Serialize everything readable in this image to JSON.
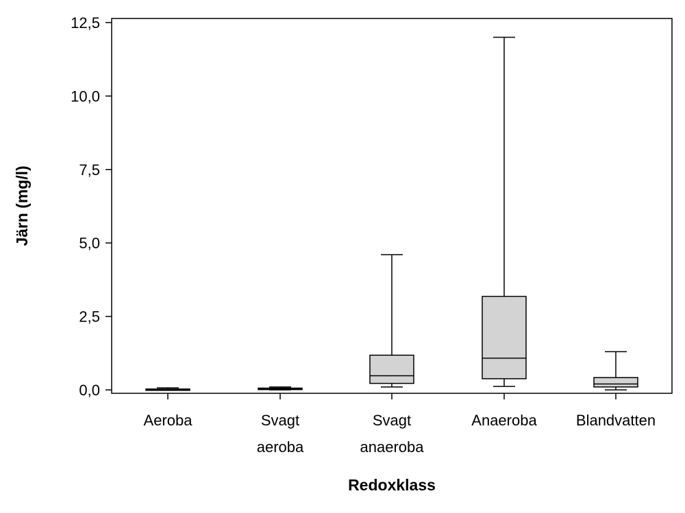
{
  "chart_data": {
    "type": "box",
    "xlabel": "Redoxklass",
    "ylabel": "Järn (mg/l)",
    "ylim": [
      -0.1,
      12.5
    ],
    "yticks": [
      {
        "value": 0.0,
        "label": "0,0"
      },
      {
        "value": 2.5,
        "label": "2,5"
      },
      {
        "value": 5.0,
        "label": "5,0"
      },
      {
        "value": 7.5,
        "label": "7,5"
      },
      {
        "value": 10.0,
        "label": "10,0"
      },
      {
        "value": 12.5,
        "label": "12,5"
      }
    ],
    "grid": false,
    "legend": "none",
    "box_fill": "#d3d3d3",
    "categories": [
      {
        "label_lines": [
          "Aeroba"
        ],
        "min": 0.0,
        "q1": 0.01,
        "median": 0.02,
        "q3": 0.03,
        "max": 0.07
      },
      {
        "label_lines": [
          "Svagt",
          "aeroba"
        ],
        "min": 0.0,
        "q1": 0.01,
        "median": 0.03,
        "q3": 0.06,
        "max": 0.1
      },
      {
        "label_lines": [
          "Svagt",
          "anaeroba"
        ],
        "min": 0.1,
        "q1": 0.22,
        "median": 0.48,
        "q3": 1.18,
        "max": 4.6
      },
      {
        "label_lines": [
          "Anaeroba"
        ],
        "min": 0.12,
        "q1": 0.38,
        "median": 1.08,
        "q3": 3.18,
        "max": 12.0
      },
      {
        "label_lines": [
          "Blandvatten"
        ],
        "min": 0.0,
        "q1": 0.1,
        "median": 0.2,
        "q3": 0.42,
        "max": 1.3
      }
    ]
  }
}
